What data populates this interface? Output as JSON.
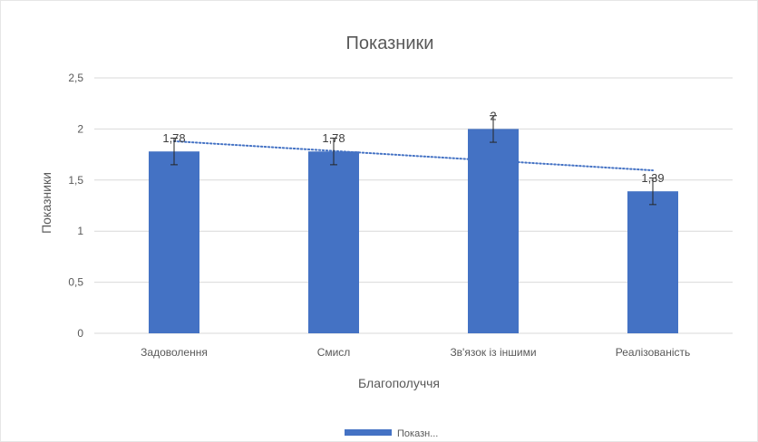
{
  "chart_data": {
    "type": "bar",
    "title": "Показники",
    "xlabel": "Благополуччя",
    "ylabel": "Показники",
    "categories": [
      "Задоволення",
      "Смисл",
      "Зв'язок із іншими",
      "Реалізованість"
    ],
    "series": [
      {
        "name": "Показн...",
        "values": [
          1.78,
          1.78,
          2,
          1.39
        ],
        "data_labels": [
          "1,78",
          "1,78",
          "2",
          "1,39"
        ],
        "error": [
          0.13,
          0.13,
          0.13,
          0.13
        ]
      }
    ],
    "trendline": {
      "type": "linear",
      "style": "dotted"
    },
    "ylim": [
      0,
      2.5
    ],
    "yticks": [
      0,
      0.5,
      1,
      1.5,
      2,
      2.5
    ],
    "ytick_labels": [
      "0",
      "0,5",
      "1",
      "1,5",
      "2",
      "2,5"
    ],
    "grid": true,
    "legend_position": "bottom",
    "colors": {
      "bar": "#4472C4",
      "grid": "#D9D9D9",
      "trend": "#4472C4",
      "text": "#595959"
    }
  }
}
